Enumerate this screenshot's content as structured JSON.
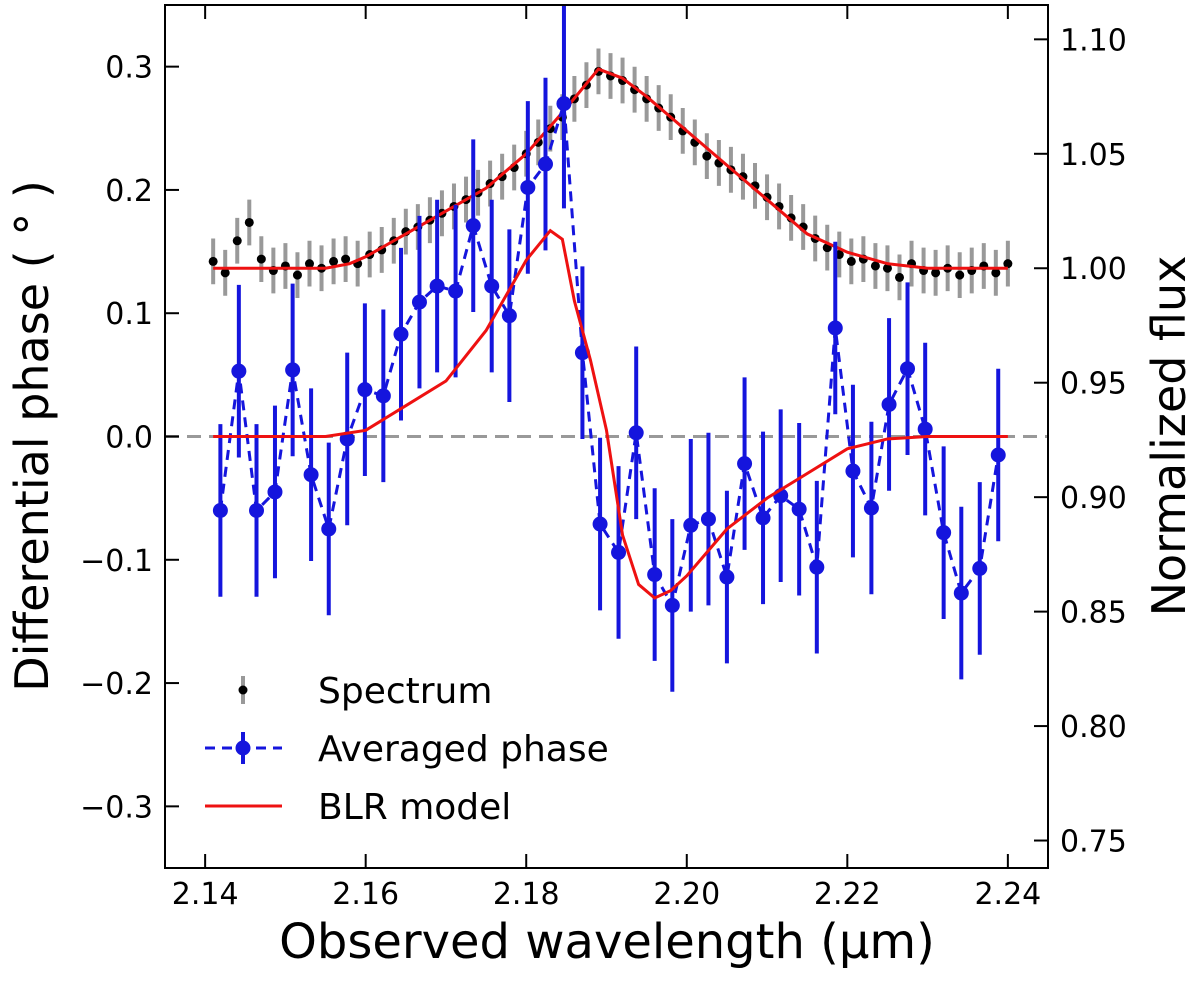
{
  "chart_data": {
    "type": "errorbar",
    "xlabel": "Observed wavelength (μm)",
    "ylabel": "Differential phase ( ° )",
    "y2label": "Normalized flux",
    "xlim": [
      2.135,
      2.245
    ],
    "ylim": [
      -0.35,
      0.35
    ],
    "y2lim": [
      0.738,
      1.115
    ],
    "xticks": [
      2.14,
      2.16,
      2.18,
      {
        "value": 2.2,
        "label": "2.20"
      },
      2.22,
      2.24
    ],
    "yticks": [
      {
        "value": -0.3,
        "label": "−0.3"
      },
      {
        "value": -0.2,
        "label": "−0.2"
      },
      {
        "value": -0.1,
        "label": "−0.1"
      },
      {
        "value": 0,
        "label": "0.0"
      },
      0.1,
      0.2,
      0.3
    ],
    "y2ticks": [
      0.75,
      {
        "value": 0.8,
        "label": "0.80"
      },
      0.85,
      {
        "value": 0.9,
        "label": "0.90"
      },
      0.95,
      {
        "value": 1,
        "label": "1.00"
      },
      1.05,
      {
        "value": 1.1,
        "label": "1.10"
      }
    ],
    "hlines": [
      0
    ],
    "legend": "lower left",
    "series": [
      {
        "name": "Spectrum",
        "type": "errorbar-points",
        "axis": "y2",
        "color": "#000000",
        "error_color": "#999999",
        "x": [
          2.141,
          2.1425,
          2.144,
          2.1455,
          2.147,
          2.1485,
          2.15,
          2.1515,
          2.153,
          2.1545,
          2.156,
          2.1575,
          2.159,
          2.1605,
          2.162,
          2.1635,
          2.165,
          2.1665,
          2.168,
          2.1695,
          2.171,
          2.1725,
          2.174,
          2.1755,
          2.177,
          2.1785,
          2.18,
          2.1815,
          2.183,
          2.1845,
          2.186,
          2.1875,
          2.189,
          2.1905,
          2.192,
          2.1935,
          2.195,
          2.1965,
          2.198,
          2.1995,
          2.201,
          2.2025,
          2.204,
          2.2055,
          2.207,
          2.2085,
          2.21,
          2.2115,
          2.213,
          2.2145,
          2.216,
          2.2175,
          2.219,
          2.2205,
          2.222,
          2.2235,
          2.225,
          2.2265,
          2.228,
          2.2295,
          2.231,
          2.2325,
          2.234,
          2.2355,
          2.237,
          2.2385,
          2.24
        ],
        "values": [
          1.003,
          0.998,
          1.012,
          1.02,
          1.004,
          0.999,
          1.001,
          0.997,
          1.002,
          1.0,
          1.003,
          1.004,
          1.002,
          1.006,
          1.008,
          1.012,
          1.016,
          1.018,
          1.021,
          1.024,
          1.027,
          1.03,
          1.033,
          1.037,
          1.04,
          1.044,
          1.05,
          1.055,
          1.061,
          1.066,
          1.074,
          1.08,
          1.086,
          1.084,
          1.082,
          1.078,
          1.074,
          1.07,
          1.066,
          1.06,
          1.055,
          1.049,
          1.046,
          1.043,
          1.04,
          1.036,
          1.031,
          1.027,
          1.022,
          1.018,
          1.013,
          1.009,
          1.006,
          1.003,
          1.004,
          1.001,
          1.0,
          0.996,
          1.002,
          0.999,
          0.998,
          1.0,
          0.997,
          0.999,
          1.001,
          0.998,
          1.002
        ],
        "errors": [
          0.01,
          0.01,
          0.01,
          0.01,
          0.01,
          0.01,
          0.01,
          0.01,
          0.01,
          0.01,
          0.01,
          0.01,
          0.01,
          0.01,
          0.01,
          0.01,
          0.01,
          0.01,
          0.01,
          0.01,
          0.01,
          0.01,
          0.01,
          0.01,
          0.01,
          0.01,
          0.01,
          0.01,
          0.01,
          0.01,
          0.01,
          0.01,
          0.01,
          0.01,
          0.01,
          0.01,
          0.01,
          0.01,
          0.01,
          0.01,
          0.01,
          0.01,
          0.01,
          0.01,
          0.01,
          0.01,
          0.01,
          0.01,
          0.01,
          0.01,
          0.01,
          0.01,
          0.01,
          0.01,
          0.01,
          0.01,
          0.01,
          0.01,
          0.01,
          0.01,
          0.01,
          0.01,
          0.01,
          0.01,
          0.01,
          0.01,
          0.01
        ]
      },
      {
        "type": "line",
        "axis": "y2",
        "color": "#ee1111",
        "x": [
          2.141,
          2.155,
          2.158,
          2.16,
          2.165,
          2.17,
          2.175,
          2.18,
          2.185,
          2.189,
          2.192,
          2.195,
          2.2,
          2.205,
          2.21,
          2.215,
          2.22,
          2.225,
          2.23,
          2.24
        ],
        "values": [
          1.0,
          1.0,
          1.002,
          1.005,
          1.015,
          1.025,
          1.035,
          1.05,
          1.07,
          1.087,
          1.083,
          1.075,
          1.06,
          1.045,
          1.03,
          1.015,
          1.007,
          1.002,
          1.0,
          1.0
        ]
      },
      {
        "name": "Averaged phase",
        "type": "errorbar-dashed",
        "axis": "y",
        "color": "#1515dd",
        "error_color": "#1515dd",
        "x": [
          2.1419,
          2.1442,
          2.1464,
          2.1487,
          2.1509,
          2.1532,
          2.1554,
          2.1577,
          2.1599,
          2.1622,
          2.1644,
          2.1667,
          2.1689,
          2.1712,
          2.1734,
          2.1757,
          2.1779,
          2.1802,
          2.1824,
          2.1847,
          2.187,
          2.1892,
          2.1915,
          2.1937,
          2.196,
          2.1982,
          2.2005,
          2.2027,
          2.205,
          2.2072,
          2.2095,
          2.2117,
          2.214,
          2.2162,
          2.2185,
          2.2207,
          2.223,
          2.2252,
          2.2275,
          2.2297,
          2.232,
          2.2342,
          2.2365,
          2.2388
        ],
        "values": [
          -0.06,
          0.053,
          -0.06,
          -0.045,
          0.054,
          -0.031,
          -0.075,
          -0.002,
          0.038,
          0.033,
          0.083,
          0.109,
          0.122,
          0.118,
          0.171,
          0.122,
          0.098,
          0.202,
          0.221,
          0.27,
          0.068,
          -0.071,
          -0.094,
          0.003,
          -0.112,
          -0.137,
          -0.072,
          -0.067,
          -0.114,
          -0.022,
          -0.066,
          -0.048,
          -0.059,
          -0.106,
          0.088,
          -0.028,
          -0.058,
          0.026,
          0.055,
          0.006,
          -0.078,
          -0.127,
          -0.107,
          -0.015
        ],
        "errors": [
          0.07,
          0.07,
          0.07,
          0.07,
          0.07,
          0.07,
          0.07,
          0.07,
          0.07,
          0.07,
          0.07,
          0.07,
          0.07,
          0.07,
          0.07,
          0.07,
          0.07,
          0.07,
          0.07,
          0.085,
          0.07,
          0.07,
          0.07,
          0.07,
          0.07,
          0.07,
          0.07,
          0.07,
          0.07,
          0.07,
          0.07,
          0.07,
          0.07,
          0.07,
          0.07,
          0.07,
          0.07,
          0.07,
          0.07,
          0.07,
          0.07,
          0.07,
          0.07,
          0.07
        ]
      },
      {
        "name": "BLR model",
        "type": "line",
        "axis": "y",
        "color": "#ee1111",
        "x": [
          2.141,
          2.155,
          2.16,
          2.165,
          2.17,
          2.175,
          2.18,
          2.183,
          2.1845,
          2.186,
          2.188,
          2.19,
          2.192,
          2.194,
          2.196,
          2.198,
          2.2,
          2.205,
          2.21,
          2.215,
          2.22,
          2.225,
          2.23,
          2.24
        ],
        "values": [
          0,
          0,
          0.005,
          0.025,
          0.045,
          0.086,
          0.143,
          0.167,
          0.16,
          0.11,
          0.062,
          0.005,
          -0.08,
          -0.12,
          -0.131,
          -0.125,
          -0.113,
          -0.075,
          -0.05,
          -0.03,
          -0.01,
          -0.002,
          0,
          0
        ]
      }
    ]
  }
}
